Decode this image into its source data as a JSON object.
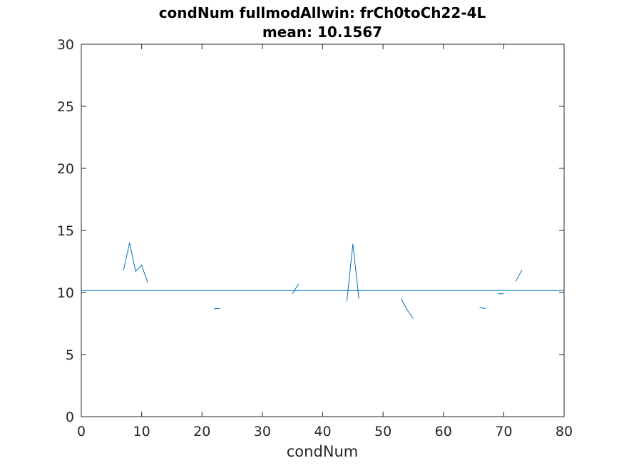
{
  "chart_data": {
    "type": "line",
    "title": [
      "condNum fullmodAllwin: frCh0toCh22-4L",
      "mean: 10.1567"
    ],
    "xlabel": "condNum",
    "ylabel": "",
    "xlim": [
      0,
      80
    ],
    "ylim": [
      0,
      30
    ],
    "xticks": [
      0,
      10,
      20,
      30,
      40,
      50,
      60,
      70,
      80
    ],
    "yticks": [
      0,
      5,
      10,
      15,
      20,
      25,
      30
    ],
    "grid": false,
    "mean_value": 10.1567,
    "series": [
      {
        "color": "#0072bd",
        "segments": [
          [
            [
              7,
              11.8
            ],
            [
              8,
              14.0
            ],
            [
              9,
              11.7
            ],
            [
              10,
              12.2
            ],
            [
              11,
              10.8
            ]
          ],
          [
            [
              22,
              8.7
            ],
            [
              23,
              8.7
            ]
          ],
          [
            [
              35,
              9.9
            ],
            [
              36,
              10.7
            ]
          ],
          [
            [
              44,
              9.3
            ],
            [
              45,
              13.9
            ],
            [
              46,
              9.5
            ]
          ],
          [
            [
              53,
              9.5
            ],
            [
              54,
              8.6
            ],
            [
              55,
              7.9
            ]
          ],
          [
            [
              66,
              8.8
            ],
            [
              67,
              8.7
            ]
          ],
          [
            [
              69,
              9.9
            ],
            [
              70,
              9.9
            ]
          ],
          [
            [
              72,
              10.9
            ],
            [
              73,
              11.8
            ]
          ]
        ]
      }
    ],
    "mean_line_color": "#0072bd",
    "top_line": {
      "y": 30,
      "color": "#d62728"
    }
  }
}
